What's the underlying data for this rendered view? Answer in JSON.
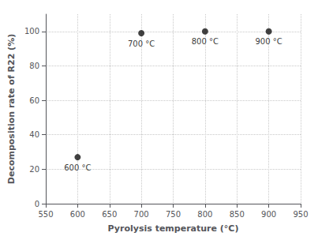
{
  "chart_data": {
    "type": "scatter",
    "x": [
      600,
      700,
      800,
      900
    ],
    "y": [
      27,
      99,
      100,
      100
    ],
    "xlabel": "Pyrolysis temperature (°C)",
    "ylabel": "Decomposition rate of R22 (%)",
    "xlim": [
      550,
      950
    ],
    "ylim": [
      0,
      110
    ],
    "xticks": [
      550,
      600,
      650,
      700,
      750,
      800,
      850,
      900,
      950
    ],
    "yticks": [
      0,
      20,
      40,
      60,
      80,
      100
    ],
    "color": "#111111",
    "grid": true,
    "annotations": [
      {
        "x": 600,
        "y": 27,
        "label": "600 °C"
      },
      {
        "x": 700,
        "y": 99,
        "label": "700 °C"
      },
      {
        "x": 800,
        "y": 100,
        "label": "800 °C"
      },
      {
        "x": 900,
        "y": 100,
        "label": "900 °C"
      }
    ]
  }
}
